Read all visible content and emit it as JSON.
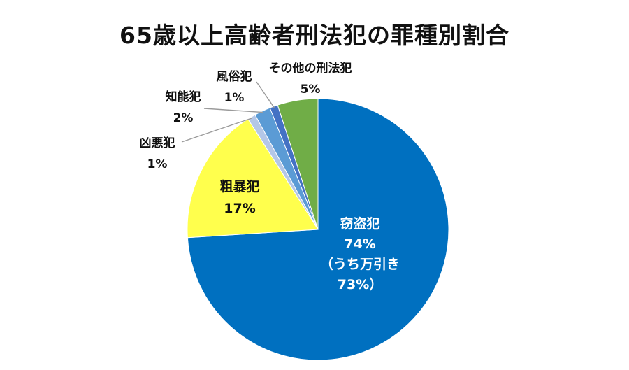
{
  "chart_data": {
    "type": "pie",
    "title": "65歳以上高齢者刑法犯の罪種別割合",
    "start_angle_deg": 0,
    "direction": "clockwise",
    "slices": [
      {
        "label": "窃盗犯",
        "value": 74,
        "value_label": "74%",
        "sub_label_1": "（うち万引き",
        "sub_label_2": "73%）",
        "color": "#0070C0",
        "label_color": "#ffffff"
      },
      {
        "label": "粗暴犯",
        "value": 17,
        "value_label": "17%",
        "color": "#FFFF4D",
        "label_color": "#111111"
      },
      {
        "label": "凶悪犯",
        "value": 1,
        "value_label": "1%",
        "color": "#B4C7E7",
        "label_color": "#111111"
      },
      {
        "label": "知能犯",
        "value": 2,
        "value_label": "2%",
        "color": "#5B9BD5",
        "label_color": "#111111"
      },
      {
        "label": "風俗犯",
        "value": 1,
        "value_label": "1%",
        "color": "#4472C4",
        "label_color": "#111111"
      },
      {
        "label": "その他の刑法犯",
        "value": 5,
        "value_label": "5%",
        "color": "#70AD47",
        "label_color": "#111111"
      }
    ]
  }
}
